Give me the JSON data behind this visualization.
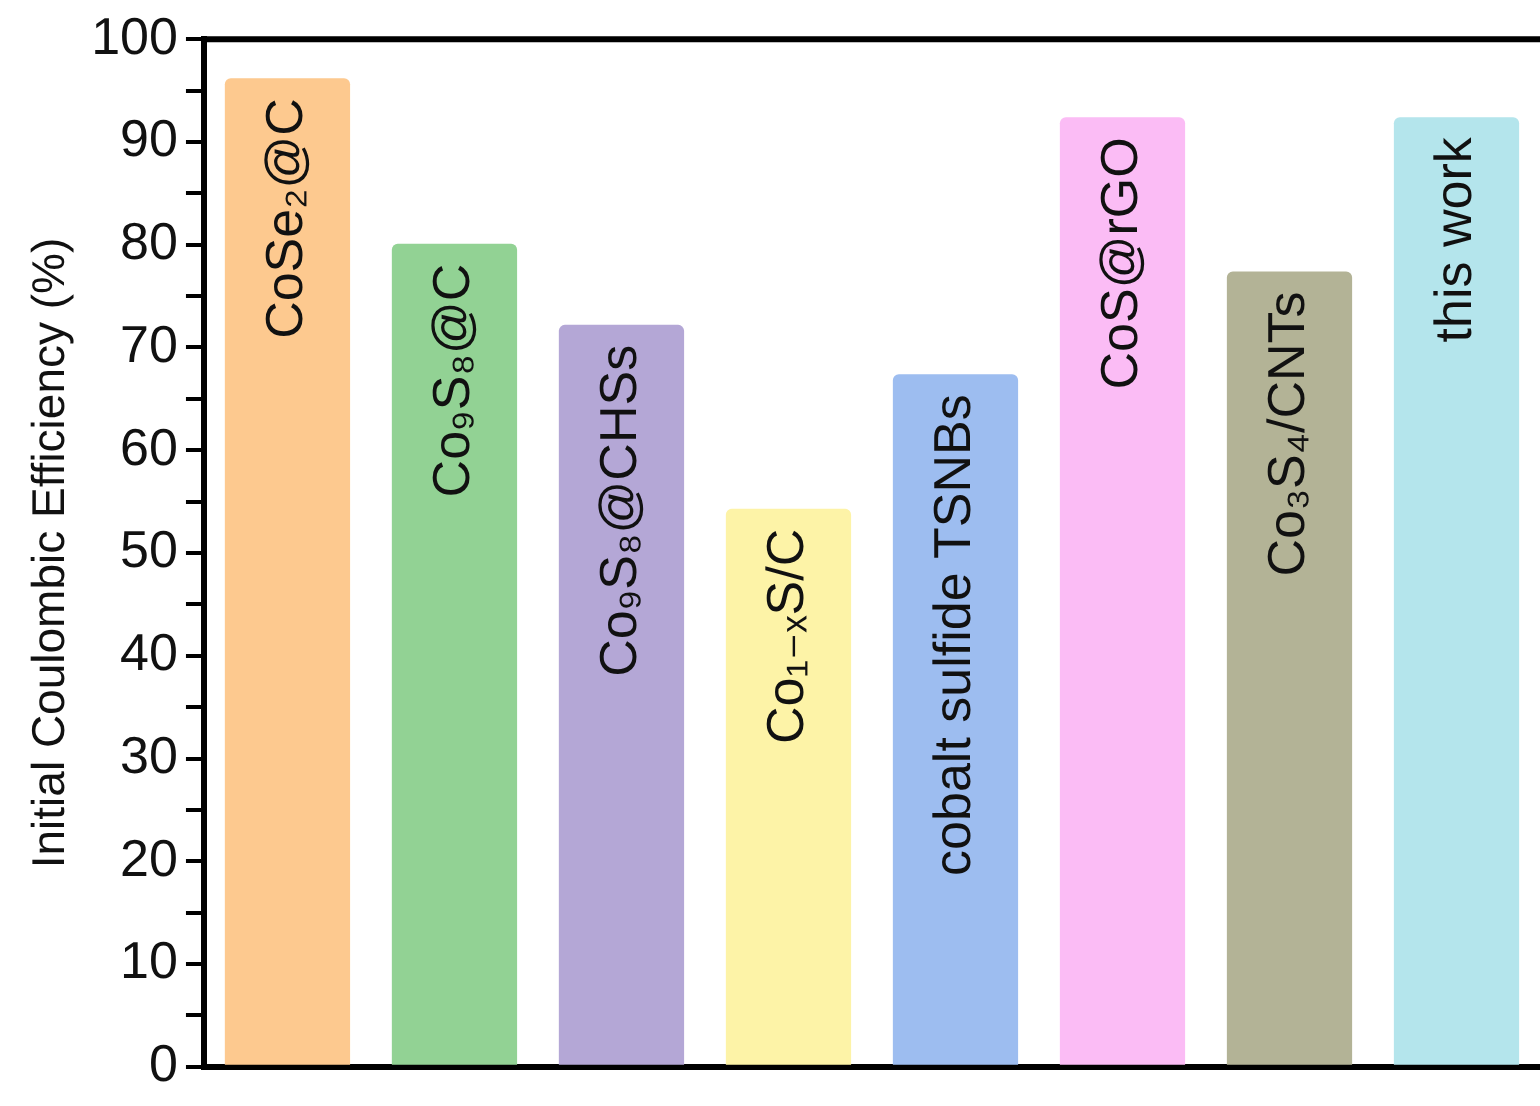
{
  "chart_data": {
    "type": "bar",
    "ylabel": "Initial Coulombic Efficiency (%)",
    "categories": [
      "CoSe₂@C",
      "Co₉S₈@C",
      "Co₉S₈@CHSs",
      "Co₁₋ₓS/C",
      "cobalt sulfide TSNBs",
      "CoS@rGO",
      "Co₃S₄/CNTs",
      "this work"
    ],
    "values": [
      96.2,
      80.1,
      72.2,
      54.3,
      67.4,
      92.4,
      77.4,
      92.4
    ],
    "colors": [
      "#fdc98f",
      "#92d294",
      "#b4a7d6",
      "#fdf3a7",
      "#9dbdf0",
      "#fbbcf5",
      "#b3b396",
      "#b4e5ec"
    ],
    "ylim": [
      0,
      100
    ],
    "yticks": [
      0,
      {
        "value": 5,
        "label": null
      },
      10,
      {
        "value": 15,
        "label": null
      },
      20,
      {
        "value": 25,
        "label": null
      },
      30,
      {
        "value": 35,
        "label": null
      },
      40,
      {
        "value": 45,
        "label": null
      },
      50,
      {
        "value": 55,
        "label": null
      },
      60,
      {
        "value": 65,
        "label": null
      },
      70,
      {
        "value": 75,
        "label": null
      },
      80,
      {
        "value": 85,
        "label": null
      },
      90,
      {
        "value": 95,
        "label": null
      },
      100
    ],
    "grid": false,
    "legend": false,
    "tick_labels": "y"
  }
}
